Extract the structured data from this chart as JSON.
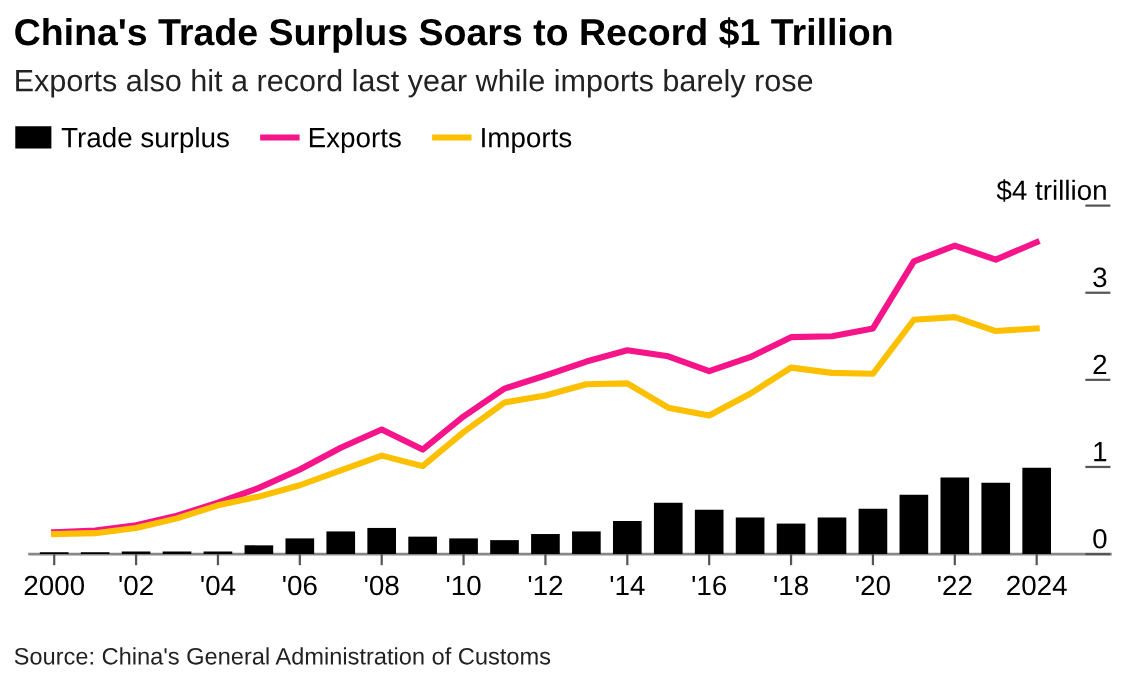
{
  "chart_data": {
    "type": "bar",
    "title": "China's Trade Surplus Soars to Record $1 Trillion",
    "subtitle": "Exports also hit a record last year while imports barely rose",
    "x": [
      2000,
      2001,
      2002,
      2003,
      2004,
      2005,
      2006,
      2007,
      2008,
      2009,
      2010,
      2011,
      2012,
      2013,
      2014,
      2015,
      2016,
      2017,
      2018,
      2019,
      2020,
      2021,
      2022,
      2023,
      2024
    ],
    "series": [
      {
        "name": "Trade surplus",
        "color": "#000000",
        "values": [
          0.02,
          0.02,
          0.03,
          0.03,
          0.03,
          0.1,
          0.18,
          0.26,
          0.3,
          0.2,
          0.18,
          0.16,
          0.23,
          0.26,
          0.38,
          0.59,
          0.51,
          0.42,
          0.35,
          0.42,
          0.52,
          0.68,
          0.88,
          0.82,
          0.99
        ]
      },
      {
        "name": "Exports",
        "type": "line",
        "color": "#f5148a",
        "values": [
          0.25,
          0.27,
          0.33,
          0.44,
          0.59,
          0.76,
          0.97,
          1.22,
          1.43,
          1.2,
          1.58,
          1.9,
          2.05,
          2.21,
          2.34,
          2.27,
          2.1,
          2.26,
          2.49,
          2.5,
          2.59,
          3.36,
          3.54,
          3.38,
          3.58
        ]
      },
      {
        "name": "Imports",
        "type": "line",
        "color": "#fcc000",
        "values": [
          0.23,
          0.24,
          0.3,
          0.41,
          0.56,
          0.66,
          0.79,
          0.96,
          1.13,
          1.01,
          1.4,
          1.74,
          1.82,
          1.95,
          1.96,
          1.68,
          1.59,
          1.84,
          2.14,
          2.08,
          2.07,
          2.69,
          2.72,
          2.56,
          2.59
        ]
      }
    ],
    "xlim": [
      1999.4,
      2025.8
    ],
    "xticks": [
      2000,
      {
        "value": 2002,
        "label": "'02"
      },
      {
        "value": 2004,
        "label": "'04"
      },
      {
        "value": 2006,
        "label": "'06"
      },
      {
        "value": 2008,
        "label": "'08"
      },
      {
        "value": 2010,
        "label": "'10"
      },
      {
        "value": 2012,
        "label": "'12"
      },
      {
        "value": 2014,
        "label": "'14"
      },
      {
        "value": 2016,
        "label": "'16"
      },
      {
        "value": 2018,
        "label": "'18"
      },
      {
        "value": 2020,
        "label": "'20"
      },
      {
        "value": 2022,
        "label": "'22"
      },
      2024
    ],
    "ylim": [
      0,
      4
    ],
    "yticks": [
      0,
      1,
      2,
      3,
      {
        "value": 4,
        "label": "$4 trillion"
      }
    ],
    "grid": false,
    "legend": "top left",
    "marker": "none",
    "line_style": "solid",
    "annotations": [
      "Source: China's General Administration of Customs"
    ]
  }
}
